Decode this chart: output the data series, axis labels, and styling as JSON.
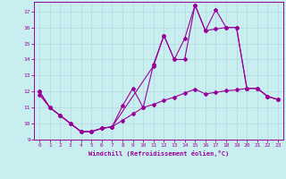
{
  "xlabel": "Windchill (Refroidissement éolien,°C)",
  "bg_color": "#c8eef0",
  "grid_color": "#b0d8dc",
  "line_color": "#990099",
  "xlim": [
    -0.5,
    23.5
  ],
  "ylim": [
    9,
    17.6
  ],
  "yticks": [
    9,
    10,
    11,
    12,
    13,
    14,
    15,
    16,
    17
  ],
  "xticks": [
    0,
    1,
    2,
    3,
    4,
    5,
    6,
    7,
    8,
    9,
    10,
    11,
    12,
    13,
    14,
    15,
    16,
    17,
    18,
    19,
    20,
    21,
    22,
    23
  ],
  "line1_x": [
    0,
    1,
    2,
    3,
    4,
    5,
    6,
    7,
    8,
    9,
    10,
    11,
    12,
    13,
    14,
    15,
    16,
    17,
    18,
    19,
    20,
    21,
    22,
    23
  ],
  "line1_y": [
    12.0,
    11.0,
    10.5,
    10.0,
    9.5,
    9.5,
    9.7,
    9.8,
    11.1,
    12.2,
    11.0,
    13.7,
    15.5,
    14.0,
    14.0,
    17.4,
    15.8,
    15.9,
    16.0,
    16.0,
    12.2,
    12.2,
    11.7,
    11.5
  ],
  "line2_x": [
    0,
    1,
    2,
    3,
    4,
    5,
    6,
    7,
    11,
    12,
    13,
    14,
    15,
    16,
    17,
    18,
    19,
    20,
    21,
    22,
    23
  ],
  "line2_y": [
    12.0,
    11.0,
    10.5,
    10.0,
    9.5,
    9.5,
    9.7,
    9.8,
    13.6,
    15.5,
    14.0,
    15.3,
    17.4,
    15.8,
    17.1,
    16.0,
    16.0,
    12.2,
    12.2,
    11.7,
    11.5
  ],
  "line3_x": [
    0,
    1,
    2,
    3,
    4,
    5,
    6,
    7,
    8,
    9,
    10,
    11,
    12,
    13,
    14,
    15,
    16,
    17,
    18,
    19,
    20,
    21,
    22,
    23
  ],
  "line3_y": [
    11.8,
    11.0,
    10.5,
    10.0,
    9.5,
    9.5,
    9.7,
    9.8,
    10.2,
    10.6,
    11.0,
    11.2,
    11.45,
    11.65,
    11.9,
    12.15,
    11.85,
    11.95,
    12.05,
    12.1,
    12.2,
    12.2,
    11.7,
    11.5
  ]
}
